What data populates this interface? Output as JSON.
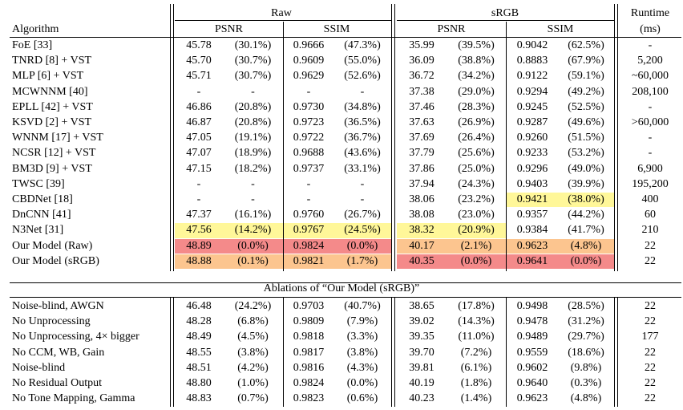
{
  "header": {
    "group_raw": "Raw",
    "group_srgb": "sRGB",
    "runtime_line1": "Runtime",
    "runtime_line2": "(ms)",
    "algorithm": "Algorithm",
    "psnr": "PSNR",
    "ssim": "SSIM"
  },
  "main_rows": [
    {
      "name": "FoE [33]",
      "raw_psnr": "45.78",
      "raw_psnr_pct": "(30.1%)",
      "raw_ssim": "0.9666",
      "raw_ssim_pct": "(47.3%)",
      "srgb_psnr": "35.99",
      "srgb_psnr_pct": "(39.5%)",
      "srgb_ssim": "0.9042",
      "srgb_ssim_pct": "(62.5%)",
      "runtime": "-"
    },
    {
      "name": "TNRD [8] + VST",
      "raw_psnr": "45.70",
      "raw_psnr_pct": "(30.7%)",
      "raw_ssim": "0.9609",
      "raw_ssim_pct": "(55.0%)",
      "srgb_psnr": "36.09",
      "srgb_psnr_pct": "(38.8%)",
      "srgb_ssim": "0.8883",
      "srgb_ssim_pct": "(67.9%)",
      "runtime": "5,200"
    },
    {
      "name": "MLP [6] + VST",
      "raw_psnr": "45.71",
      "raw_psnr_pct": "(30.7%)",
      "raw_ssim": "0.9629",
      "raw_ssim_pct": "(52.6%)",
      "srgb_psnr": "36.72",
      "srgb_psnr_pct": "(34.2%)",
      "srgb_ssim": "0.9122",
      "srgb_ssim_pct": "(59.1%)",
      "runtime": "~60,000"
    },
    {
      "name": "MCWNNM [40]",
      "raw_psnr": "-",
      "raw_psnr_pct": "-",
      "raw_ssim": "-",
      "raw_ssim_pct": "-",
      "srgb_psnr": "37.38",
      "srgb_psnr_pct": "(29.0%)",
      "srgb_ssim": "0.9294",
      "srgb_ssim_pct": "(49.2%)",
      "runtime": "208,100"
    },
    {
      "name": "EPLL [42] + VST",
      "raw_psnr": "46.86",
      "raw_psnr_pct": "(20.8%)",
      "raw_ssim": "0.9730",
      "raw_ssim_pct": "(34.8%)",
      "srgb_psnr": "37.46",
      "srgb_psnr_pct": "(28.3%)",
      "srgb_ssim": "0.9245",
      "srgb_ssim_pct": "(52.5%)",
      "runtime": "-"
    },
    {
      "name": "KSVD [2] + VST",
      "raw_psnr": "46.87",
      "raw_psnr_pct": "(20.8%)",
      "raw_ssim": "0.9723",
      "raw_ssim_pct": "(36.5%)",
      "srgb_psnr": "37.63",
      "srgb_psnr_pct": "(26.9%)",
      "srgb_ssim": "0.9287",
      "srgb_ssim_pct": "(49.6%)",
      "runtime": ">60,000"
    },
    {
      "name": "WNNM [17] + VST",
      "raw_psnr": "47.05",
      "raw_psnr_pct": "(19.1%)",
      "raw_ssim": "0.9722",
      "raw_ssim_pct": "(36.7%)",
      "srgb_psnr": "37.69",
      "srgb_psnr_pct": "(26.4%)",
      "srgb_ssim": "0.9260",
      "srgb_ssim_pct": "(51.5%)",
      "runtime": "-"
    },
    {
      "name": "NCSR [12] + VST",
      "raw_psnr": "47.07",
      "raw_psnr_pct": "(18.9%)",
      "raw_ssim": "0.9688",
      "raw_ssim_pct": "(43.6%)",
      "srgb_psnr": "37.79",
      "srgb_psnr_pct": "(25.6%)",
      "srgb_ssim": "0.9233",
      "srgb_ssim_pct": "(53.2%)",
      "runtime": "-"
    },
    {
      "name": "BM3D [9] + VST",
      "raw_psnr": "47.15",
      "raw_psnr_pct": "(18.2%)",
      "raw_ssim": "0.9737",
      "raw_ssim_pct": "(33.1%)",
      "srgb_psnr": "37.86",
      "srgb_psnr_pct": "(25.0%)",
      "srgb_ssim": "0.9296",
      "srgb_ssim_pct": "(49.0%)",
      "runtime": "6,900"
    },
    {
      "name": "TWSC [39]",
      "raw_psnr": "-",
      "raw_psnr_pct": "-",
      "raw_ssim": "-",
      "raw_ssim_pct": "-",
      "srgb_psnr": "37.94",
      "srgb_psnr_pct": "(24.3%)",
      "srgb_ssim": "0.9403",
      "srgb_ssim_pct": "(39.9%)",
      "runtime": "195,200"
    },
    {
      "name": "CBDNet [18]",
      "raw_psnr": "-",
      "raw_psnr_pct": "-",
      "raw_ssim": "-",
      "raw_ssim_pct": "-",
      "srgb_psnr": "38.06",
      "srgb_psnr_pct": "(23.2%)",
      "srgb_ssim": "0.9421",
      "srgb_ssim_pct": "(38.0%)",
      "runtime": "400"
    },
    {
      "name": "DnCNN [41]",
      "raw_psnr": "47.37",
      "raw_psnr_pct": "(16.1%)",
      "raw_ssim": "0.9760",
      "raw_ssim_pct": "(26.7%)",
      "srgb_psnr": "38.08",
      "srgb_psnr_pct": "(23.0%)",
      "srgb_ssim": "0.9357",
      "srgb_ssim_pct": "(44.2%)",
      "runtime": "60"
    },
    {
      "name": "N3Net [31]",
      "raw_psnr": "47.56",
      "raw_psnr_pct": "(14.2%)",
      "raw_ssim": "0.9767",
      "raw_ssim_pct": "(24.5%)",
      "srgb_psnr": "38.32",
      "srgb_psnr_pct": "(20.9%)",
      "srgb_ssim": "0.9384",
      "srgb_ssim_pct": "(41.7%)",
      "runtime": "210"
    },
    {
      "name": "Our Model (Raw)",
      "raw_psnr": "48.89",
      "raw_psnr_pct": "(0.0%)",
      "raw_ssim": "0.9824",
      "raw_ssim_pct": "(0.0%)",
      "srgb_psnr": "40.17",
      "srgb_psnr_pct": "(2.1%)",
      "srgb_ssim": "0.9623",
      "srgb_ssim_pct": "(4.8%)",
      "runtime": "22"
    },
    {
      "name": "Our Model (sRGB)",
      "raw_psnr": "48.88",
      "raw_psnr_pct": "(0.1%)",
      "raw_ssim": "0.9821",
      "raw_ssim_pct": "(1.7%)",
      "srgb_psnr": "40.35",
      "srgb_psnr_pct": "(0.0%)",
      "srgb_ssim": "0.9641",
      "srgb_ssim_pct": "(0.0%)",
      "runtime": "22"
    }
  ],
  "ablation_caption": "Ablations of “Our Model (sRGB)”",
  "ablation_rows": [
    {
      "name": "Noise-blind, AWGN",
      "raw_psnr": "46.48",
      "raw_psnr_pct": "(24.2%)",
      "raw_ssim": "0.9703",
      "raw_ssim_pct": "(40.7%)",
      "srgb_psnr": "38.65",
      "srgb_psnr_pct": "(17.8%)",
      "srgb_ssim": "0.9498",
      "srgb_ssim_pct": "(28.5%)",
      "runtime": "22"
    },
    {
      "name": "No Unprocessing",
      "raw_psnr": "48.28",
      "raw_psnr_pct": "(6.8%)",
      "raw_ssim": "0.9809",
      "raw_ssim_pct": "(7.9%)",
      "srgb_psnr": "39.02",
      "srgb_psnr_pct": "(14.3%)",
      "srgb_ssim": "0.9478",
      "srgb_ssim_pct": "(31.2%)",
      "runtime": "22"
    },
    {
      "name": "No Unprocessing, 4× bigger",
      "raw_psnr": "48.49",
      "raw_psnr_pct": "(4.5%)",
      "raw_ssim": "0.9818",
      "raw_ssim_pct": "(3.3%)",
      "srgb_psnr": "39.35",
      "srgb_psnr_pct": "(11.0%)",
      "srgb_ssim": "0.9489",
      "srgb_ssim_pct": "(29.7%)",
      "runtime": "177"
    },
    {
      "name": "No CCM, WB, Gain",
      "raw_psnr": "48.55",
      "raw_psnr_pct": "(3.8%)",
      "raw_ssim": "0.9817",
      "raw_ssim_pct": "(3.8%)",
      "srgb_psnr": "39.70",
      "srgb_psnr_pct": "(7.2%)",
      "srgb_ssim": "0.9559",
      "srgb_ssim_pct": "(18.6%)",
      "runtime": "22"
    },
    {
      "name": "Noise-blind",
      "raw_psnr": "48.51",
      "raw_psnr_pct": "(4.2%)",
      "raw_ssim": "0.9816",
      "raw_ssim_pct": "(4.3%)",
      "srgb_psnr": "39.81",
      "srgb_psnr_pct": "(6.1%)",
      "srgb_ssim": "0.9602",
      "srgb_ssim_pct": "(9.8%)",
      "runtime": "22"
    },
    {
      "name": "No Residual Output",
      "raw_psnr": "48.80",
      "raw_psnr_pct": "(1.0%)",
      "raw_ssim": "0.9824",
      "raw_ssim_pct": "(0.0%)",
      "srgb_psnr": "40.19",
      "srgb_psnr_pct": "(1.8%)",
      "srgb_ssim": "0.9640",
      "srgb_ssim_pct": "(0.3%)",
      "runtime": "22"
    },
    {
      "name": "No Tone Mapping, Gamma",
      "raw_psnr": "48.83",
      "raw_psnr_pct": "(0.7%)",
      "raw_ssim": "0.9823",
      "raw_ssim_pct": "(0.6%)",
      "srgb_psnr": "40.23",
      "srgb_psnr_pct": "(1.4%)",
      "srgb_ssim": "0.9623",
      "srgb_ssim_pct": "(4.8%)",
      "runtime": "22"
    }
  ],
  "highlight_colors": {
    "yellow": "#fff799",
    "orange": "#fcc58f",
    "red": "#f48a8a"
  }
}
